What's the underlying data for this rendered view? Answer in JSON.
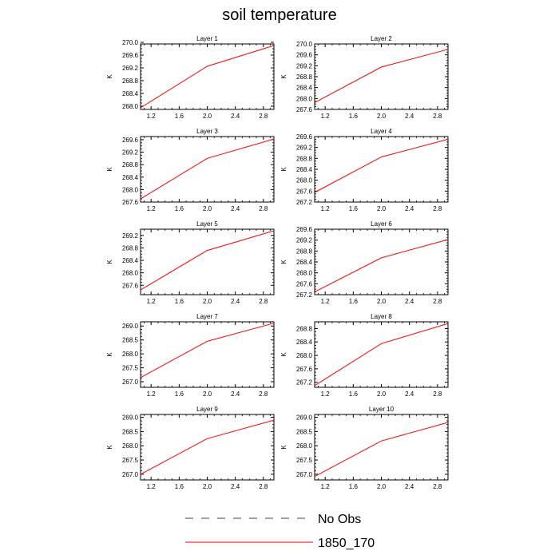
{
  "title": "soil temperature",
  "legend": {
    "items": [
      {
        "label": "No Obs",
        "color": "#3a3a8c",
        "dash": true
      },
      {
        "label": "1850_170",
        "color": "#ff0000",
        "dash": false
      }
    ]
  },
  "chart_data": [
    {
      "type": "line",
      "title": "Layer 1",
      "ylabel": "K",
      "xlim": [
        1.05,
        2.95
      ],
      "ylim": [
        267.9,
        269.95
      ],
      "yticks": [
        268.0,
        268.4,
        268.8,
        269.2,
        269.6,
        270.0
      ],
      "xticks": [
        1.2,
        1.6,
        2.0,
        2.4,
        2.8
      ],
      "series": [
        {
          "x": [
            1.05,
            2.0,
            2.95
          ],
          "y": [
            267.95,
            269.25,
            269.9
          ],
          "color": "#ff0000"
        }
      ]
    },
    {
      "type": "line",
      "title": "Layer 2",
      "ylabel": "K",
      "xlim": [
        1.05,
        2.95
      ],
      "ylim": [
        267.6,
        270.0
      ],
      "yticks": [
        267.6,
        268.0,
        268.4,
        268.8,
        269.2,
        269.6,
        270.0
      ],
      "xticks": [
        1.2,
        1.6,
        2.0,
        2.4,
        2.8
      ],
      "series": [
        {
          "x": [
            1.05,
            2.0,
            2.95
          ],
          "y": [
            267.85,
            269.15,
            269.8
          ],
          "color": "#ff0000"
        }
      ]
    },
    {
      "type": "line",
      "title": "Layer 3",
      "ylabel": "K",
      "xlim": [
        1.05,
        2.95
      ],
      "ylim": [
        267.6,
        269.7
      ],
      "yticks": [
        267.6,
        268.0,
        268.4,
        268.8,
        269.2,
        269.6
      ],
      "xticks": [
        1.2,
        1.6,
        2.0,
        2.4,
        2.8
      ],
      "series": [
        {
          "x": [
            1.05,
            2.0,
            2.95
          ],
          "y": [
            267.7,
            269.0,
            269.62
          ],
          "color": "#ff0000"
        }
      ]
    },
    {
      "type": "line",
      "title": "Layer 4",
      "ylabel": "K",
      "xlim": [
        1.05,
        2.95
      ],
      "ylim": [
        267.2,
        269.6
      ],
      "yticks": [
        267.2,
        267.6,
        268.0,
        268.4,
        268.8,
        269.2,
        269.6
      ],
      "xticks": [
        1.2,
        1.6,
        2.0,
        2.4,
        2.8
      ],
      "series": [
        {
          "x": [
            1.05,
            2.0,
            2.95
          ],
          "y": [
            267.55,
            268.85,
            269.5
          ],
          "color": "#ff0000"
        }
      ]
    },
    {
      "type": "line",
      "title": "Layer 5",
      "ylabel": "K",
      "xlim": [
        1.05,
        2.95
      ],
      "ylim": [
        267.3,
        269.4
      ],
      "yticks": [
        267.6,
        268.0,
        268.4,
        268.8,
        269.2
      ],
      "xticks": [
        1.2,
        1.6,
        2.0,
        2.4,
        2.8
      ],
      "series": [
        {
          "x": [
            1.05,
            2.0,
            2.95
          ],
          "y": [
            267.45,
            268.72,
            269.35
          ],
          "color": "#ff0000"
        }
      ]
    },
    {
      "type": "line",
      "title": "Layer 6",
      "ylabel": "K",
      "xlim": [
        1.05,
        2.95
      ],
      "ylim": [
        267.2,
        269.6
      ],
      "yticks": [
        267.2,
        267.6,
        268.0,
        268.4,
        268.8,
        269.2,
        269.6
      ],
      "xticks": [
        1.2,
        1.6,
        2.0,
        2.4,
        2.8
      ],
      "series": [
        {
          "x": [
            1.05,
            2.0,
            2.95
          ],
          "y": [
            267.3,
            268.55,
            269.22
          ],
          "color": "#ff0000"
        }
      ]
    },
    {
      "type": "line",
      "title": "Layer 7",
      "ylabel": "K",
      "xlim": [
        1.05,
        2.95
      ],
      "ylim": [
        266.8,
        269.15
      ],
      "yticks": [
        267.0,
        267.5,
        268.0,
        268.5,
        269.0
      ],
      "xticks": [
        1.2,
        1.6,
        2.0,
        2.4,
        2.8
      ],
      "series": [
        {
          "x": [
            1.05,
            2.0,
            2.95
          ],
          "y": [
            267.15,
            268.45,
            269.1
          ],
          "color": "#ff0000"
        }
      ]
    },
    {
      "type": "line",
      "title": "Layer 8",
      "ylabel": "K",
      "xlim": [
        1.05,
        2.95
      ],
      "ylim": [
        267.05,
        269.0
      ],
      "yticks": [
        267.2,
        267.6,
        268.0,
        268.4,
        268.8
      ],
      "xticks": [
        1.2,
        1.6,
        2.0,
        2.4,
        2.8
      ],
      "series": [
        {
          "x": [
            1.05,
            2.0,
            2.95
          ],
          "y": [
            267.1,
            268.35,
            268.95
          ],
          "color": "#ff0000"
        }
      ]
    },
    {
      "type": "line",
      "title": "Layer 9",
      "ylabel": "K",
      "xlim": [
        1.05,
        2.95
      ],
      "ylim": [
        266.8,
        269.1
      ],
      "yticks": [
        267.0,
        267.5,
        268.0,
        268.5,
        269.0
      ],
      "xticks": [
        1.2,
        1.6,
        2.0,
        2.4,
        2.8
      ],
      "series": [
        {
          "x": [
            1.05,
            2.0,
            2.95
          ],
          "y": [
            267.0,
            268.25,
            268.9
          ],
          "color": "#ff0000"
        }
      ]
    },
    {
      "type": "line",
      "title": "Layer 10",
      "ylabel": "K",
      "xlim": [
        1.05,
        2.95
      ],
      "ylim": [
        266.8,
        269.1
      ],
      "yticks": [
        267.0,
        267.5,
        268.0,
        268.5,
        269.0
      ],
      "xticks": [
        1.2,
        1.6,
        2.0,
        2.4,
        2.8
      ],
      "series": [
        {
          "x": [
            1.05,
            2.0,
            2.95
          ],
          "y": [
            266.92,
            268.17,
            268.82
          ],
          "color": "#ff0000"
        }
      ]
    }
  ]
}
